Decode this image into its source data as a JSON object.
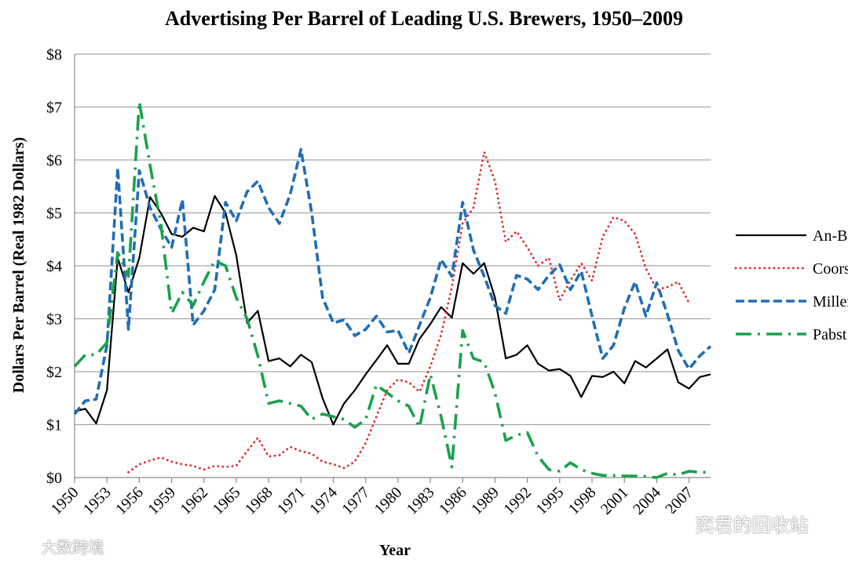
{
  "chart_data": {
    "type": "line",
    "title": "Advertising Per Barrel of Leading U.S. Brewers, 1950–2009",
    "xlabel": "Year",
    "ylabel": "Dollars Per Barrel (Real 1982 Dollars)",
    "xlim": [
      1950,
      2009
    ],
    "ylim": [
      0,
      8
    ],
    "x_ticks": [
      "1950",
      "1953",
      "1956",
      "1959",
      "1962",
      "1965",
      "1968",
      "1971",
      "1974",
      "1977",
      "1980",
      "1983",
      "1986",
      "1989",
      "1992",
      "1995",
      "1998",
      "2001",
      "2004",
      "2007"
    ],
    "y_ticks": [
      "$0",
      "$1",
      "$2",
      "$3",
      "$4",
      "$5",
      "$6",
      "$7",
      "$8"
    ],
    "grid": true,
    "legend_position": "right",
    "series": [
      {
        "name": "An-Bu",
        "color": "#000000",
        "style": "solid",
        "points": [
          [
            1950,
            1.25
          ],
          [
            1951,
            1.3
          ],
          [
            1952,
            1.02
          ],
          [
            1953,
            1.65
          ],
          [
            1954,
            4.15
          ],
          [
            1955,
            3.5
          ],
          [
            1956,
            4.15
          ],
          [
            1957,
            5.3
          ],
          [
            1958,
            5.0
          ],
          [
            1959,
            4.6
          ],
          [
            1960,
            4.55
          ],
          [
            1961,
            4.72
          ],
          [
            1962,
            4.65
          ],
          [
            1963,
            5.32
          ],
          [
            1964,
            5.0
          ],
          [
            1965,
            4.2
          ],
          [
            1966,
            2.92
          ],
          [
            1967,
            3.15
          ],
          [
            1968,
            2.2
          ],
          [
            1969,
            2.25
          ],
          [
            1970,
            2.1
          ],
          [
            1971,
            2.32
          ],
          [
            1972,
            2.18
          ],
          [
            1973,
            1.5
          ],
          [
            1974,
            1.0
          ],
          [
            1975,
            1.4
          ],
          [
            1976,
            1.65
          ],
          [
            1977,
            1.95
          ],
          [
            1978,
            2.22
          ],
          [
            1979,
            2.5
          ],
          [
            1980,
            2.15
          ],
          [
            1981,
            2.15
          ],
          [
            1982,
            2.62
          ],
          [
            1983,
            2.9
          ],
          [
            1984,
            3.22
          ],
          [
            1985,
            3.02
          ],
          [
            1986,
            4.05
          ],
          [
            1987,
            3.85
          ],
          [
            1988,
            4.05
          ],
          [
            1989,
            3.4
          ],
          [
            1990,
            2.25
          ],
          [
            1991,
            2.32
          ],
          [
            1992,
            2.5
          ],
          [
            1993,
            2.15
          ],
          [
            1994,
            2.02
          ],
          [
            1995,
            2.05
          ],
          [
            1996,
            1.92
          ],
          [
            1997,
            1.52
          ],
          [
            1998,
            1.92
          ],
          [
            1999,
            1.9
          ],
          [
            2000,
            2.0
          ],
          [
            2001,
            1.78
          ],
          [
            2002,
            2.2
          ],
          [
            2003,
            2.08
          ],
          [
            2004,
            2.25
          ],
          [
            2005,
            2.42
          ],
          [
            2006,
            1.8
          ],
          [
            2007,
            1.68
          ],
          [
            2008,
            1.9
          ],
          [
            2009,
            1.95
          ]
        ]
      },
      {
        "name": "Coors",
        "color": "#e0262b",
        "style": "dotted",
        "points": [
          [
            1955,
            0.1
          ],
          [
            1956,
            0.25
          ],
          [
            1957,
            0.32
          ],
          [
            1958,
            0.38
          ],
          [
            1959,
            0.3
          ],
          [
            1960,
            0.25
          ],
          [
            1961,
            0.22
          ],
          [
            1962,
            0.15
          ],
          [
            1963,
            0.22
          ],
          [
            1964,
            0.2
          ],
          [
            1965,
            0.22
          ],
          [
            1966,
            0.5
          ],
          [
            1967,
            0.75
          ],
          [
            1968,
            0.4
          ],
          [
            1969,
            0.42
          ],
          [
            1970,
            0.58
          ],
          [
            1971,
            0.5
          ],
          [
            1972,
            0.45
          ],
          [
            1973,
            0.3
          ],
          [
            1974,
            0.25
          ],
          [
            1975,
            0.18
          ],
          [
            1976,
            0.3
          ],
          [
            1977,
            0.65
          ],
          [
            1978,
            1.15
          ],
          [
            1979,
            1.65
          ],
          [
            1980,
            1.85
          ],
          [
            1981,
            1.8
          ],
          [
            1982,
            1.62
          ],
          [
            1983,
            2.1
          ],
          [
            1984,
            2.7
          ],
          [
            1985,
            3.6
          ],
          [
            1986,
            4.8
          ],
          [
            1987,
            5.1
          ],
          [
            1988,
            6.15
          ],
          [
            1989,
            5.6
          ],
          [
            1990,
            4.45
          ],
          [
            1991,
            4.65
          ],
          [
            1992,
            4.35
          ],
          [
            1993,
            4.0
          ],
          [
            1994,
            4.15
          ],
          [
            1995,
            3.35
          ],
          [
            1996,
            3.72
          ],
          [
            1997,
            4.05
          ],
          [
            1998,
            3.72
          ],
          [
            1999,
            4.55
          ],
          [
            2000,
            4.92
          ],
          [
            2001,
            4.85
          ],
          [
            2002,
            4.6
          ],
          [
            2003,
            3.95
          ],
          [
            2004,
            3.55
          ],
          [
            2005,
            3.6
          ],
          [
            2006,
            3.7
          ],
          [
            2007,
            3.3
          ]
        ]
      },
      {
        "name": "Miller",
        "color": "#1f6db5",
        "style": "dashed",
        "points": [
          [
            1950,
            1.2
          ],
          [
            1951,
            1.45
          ],
          [
            1952,
            1.48
          ],
          [
            1953,
            2.5
          ],
          [
            1954,
            5.85
          ],
          [
            1955,
            2.8
          ],
          [
            1956,
            5.8
          ],
          [
            1957,
            5.1
          ],
          [
            1958,
            4.7
          ],
          [
            1959,
            4.35
          ],
          [
            1960,
            5.25
          ],
          [
            1961,
            2.88
          ],
          [
            1962,
            3.15
          ],
          [
            1963,
            3.55
          ],
          [
            1964,
            5.2
          ],
          [
            1965,
            4.85
          ],
          [
            1966,
            5.4
          ],
          [
            1967,
            5.6
          ],
          [
            1968,
            5.1
          ],
          [
            1969,
            4.8
          ],
          [
            1970,
            5.35
          ],
          [
            1971,
            6.2
          ],
          [
            1972,
            5.0
          ],
          [
            1973,
            3.4
          ],
          [
            1974,
            2.92
          ],
          [
            1975,
            2.98
          ],
          [
            1976,
            2.68
          ],
          [
            1977,
            2.8
          ],
          [
            1978,
            3.05
          ],
          [
            1979,
            2.75
          ],
          [
            1980,
            2.78
          ],
          [
            1981,
            2.35
          ],
          [
            1982,
            2.88
          ],
          [
            1983,
            3.4
          ],
          [
            1984,
            4.12
          ],
          [
            1985,
            3.8
          ],
          [
            1986,
            5.2
          ],
          [
            1987,
            4.3
          ],
          [
            1988,
            3.8
          ],
          [
            1989,
            3.25
          ],
          [
            1990,
            3.1
          ],
          [
            1991,
            3.82
          ],
          [
            1992,
            3.75
          ],
          [
            1993,
            3.55
          ],
          [
            1994,
            3.82
          ],
          [
            1995,
            4.02
          ],
          [
            1996,
            3.55
          ],
          [
            1997,
            3.9
          ],
          [
            1998,
            3.05
          ],
          [
            1999,
            2.25
          ],
          [
            2000,
            2.5
          ],
          [
            2001,
            3.2
          ],
          [
            2002,
            3.7
          ],
          [
            2003,
            3.05
          ],
          [
            2004,
            3.68
          ],
          [
            2005,
            3.08
          ],
          [
            2006,
            2.4
          ],
          [
            2007,
            2.05
          ],
          [
            2008,
            2.3
          ],
          [
            2009,
            2.48
          ]
        ]
      },
      {
        "name": "Pabst",
        "color": "#1aa14b",
        "style": "dash-dot",
        "points": [
          [
            1950,
            2.1
          ],
          [
            1951,
            2.32
          ],
          [
            1952,
            2.32
          ],
          [
            1953,
            2.55
          ],
          [
            1954,
            4.25
          ],
          [
            1955,
            3.8
          ],
          [
            1956,
            7.1
          ],
          [
            1957,
            5.9
          ],
          [
            1958,
            4.8
          ],
          [
            1959,
            3.1
          ],
          [
            1960,
            3.5
          ],
          [
            1961,
            3.25
          ],
          [
            1962,
            3.7
          ],
          [
            1963,
            4.1
          ],
          [
            1964,
            4.0
          ],
          [
            1965,
            3.4
          ],
          [
            1966,
            3.0
          ],
          [
            1967,
            2.3
          ],
          [
            1968,
            1.4
          ],
          [
            1969,
            1.45
          ],
          [
            1970,
            1.4
          ],
          [
            1971,
            1.35
          ],
          [
            1972,
            1.1
          ],
          [
            1973,
            1.2
          ],
          [
            1974,
            1.15
          ],
          [
            1975,
            1.1
          ],
          [
            1976,
            0.95
          ],
          [
            1977,
            1.1
          ],
          [
            1978,
            1.75
          ],
          [
            1979,
            1.6
          ],
          [
            1980,
            1.45
          ],
          [
            1981,
            1.35
          ],
          [
            1982,
            0.95
          ],
          [
            1983,
            1.95
          ],
          [
            1984,
            1.15
          ],
          [
            1985,
            0.2
          ],
          [
            1986,
            2.78
          ],
          [
            1987,
            2.25
          ],
          [
            1988,
            2.18
          ],
          [
            1989,
            1.6
          ],
          [
            1990,
            0.7
          ],
          [
            1991,
            0.8
          ],
          [
            1992,
            0.85
          ],
          [
            1993,
            0.4
          ],
          [
            1994,
            0.15
          ],
          [
            1995,
            0.12
          ],
          [
            1996,
            0.28
          ],
          [
            1997,
            0.15
          ],
          [
            1998,
            0.08
          ],
          [
            1999,
            0.04
          ],
          [
            2000,
            0.04
          ],
          [
            2001,
            0.03
          ],
          [
            2002,
            0.03
          ],
          [
            2003,
            0.02
          ],
          [
            2004,
            0.0
          ],
          [
            2005,
            0.08
          ],
          [
            2006,
            0.05
          ],
          [
            2007,
            0.12
          ],
          [
            2008,
            0.1
          ],
          [
            2009,
            0.1
          ]
        ]
      }
    ]
  },
  "watermarks": {
    "left": "大数跨境",
    "right": "奕君的回收站"
  }
}
